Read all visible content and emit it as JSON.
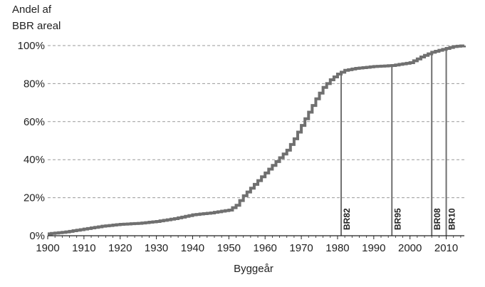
{
  "chart_data": {
    "type": "line",
    "ylabel_lines": [
      "Andel af",
      "BBR areal"
    ],
    "xlabel": "Byggeår",
    "xlim": [
      1900,
      2015
    ],
    "ylim": [
      0,
      100
    ],
    "xticks": [
      1900,
      1910,
      1920,
      1930,
      1940,
      1950,
      1960,
      1970,
      1980,
      1990,
      2000,
      2010
    ],
    "yticks": [
      0,
      20,
      40,
      60,
      80,
      100
    ],
    "ytick_labels": [
      "0%",
      "20%",
      "40%",
      "60%",
      "80%",
      "100%"
    ],
    "grid": "horizontal dashed",
    "series": [
      {
        "x": [
          1900,
          1905,
          1910,
          1915,
          1920,
          1925,
          1930,
          1935,
          1940,
          1945,
          1950,
          1952,
          1954,
          1956,
          1958,
          1960,
          1962,
          1964,
          1966,
          1968,
          1970,
          1972,
          1974,
          1976,
          1978,
          1980,
          1982,
          1985,
          1990,
          1995,
          2000,
          2003,
          2006,
          2008,
          2010,
          2012,
          2015
        ],
        "y": [
          1,
          2,
          3.5,
          5,
          6,
          6.5,
          7.5,
          9,
          11,
          12,
          13.5,
          16,
          21,
          25,
          29,
          33,
          37,
          41,
          45,
          51,
          58,
          65,
          72,
          78,
          82,
          85,
          87,
          88,
          89,
          89.5,
          91,
          94,
          96.5,
          97.5,
          98.5,
          99.5,
          100
        ],
        "color": "#707070"
      }
    ],
    "reference_lines": [
      {
        "x": 1981,
        "label": "BR82"
      },
      {
        "x": 1995,
        "label": "BR95"
      },
      {
        "x": 2006,
        "label": "BR08"
      },
      {
        "x": 2010,
        "label": "BR10"
      }
    ]
  }
}
